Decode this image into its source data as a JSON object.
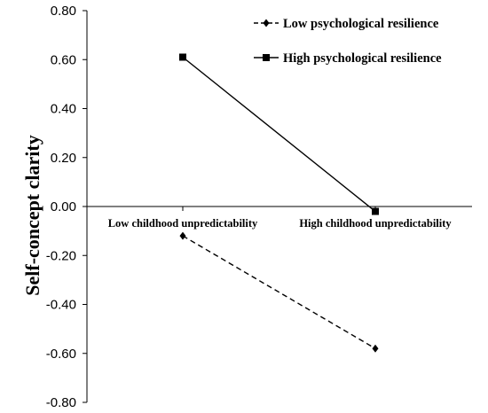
{
  "chart_data": {
    "type": "line",
    "title": "",
    "xlabel": "",
    "ylabel": "Self-concept clarity",
    "ylim": [
      -0.8,
      0.8
    ],
    "yticks": [
      "0.80",
      "0.60",
      "0.40",
      "0.20",
      "0.00",
      "-0.20",
      "-0.40",
      "-0.60",
      "-0.80"
    ],
    "categories": [
      "Low childhood unpredictability",
      "High childhood unpredictability"
    ],
    "series": [
      {
        "name": "Low psychological resilience",
        "values": [
          -0.12,
          -0.58
        ],
        "line_style": "dashed",
        "marker": "diamond",
        "color": "#000000"
      },
      {
        "name": "High psychological resilience",
        "values": [
          0.61,
          -0.02
        ],
        "line_style": "solid",
        "marker": "square",
        "color": "#000000"
      }
    ],
    "legend_position": "top-right",
    "grid": false
  }
}
